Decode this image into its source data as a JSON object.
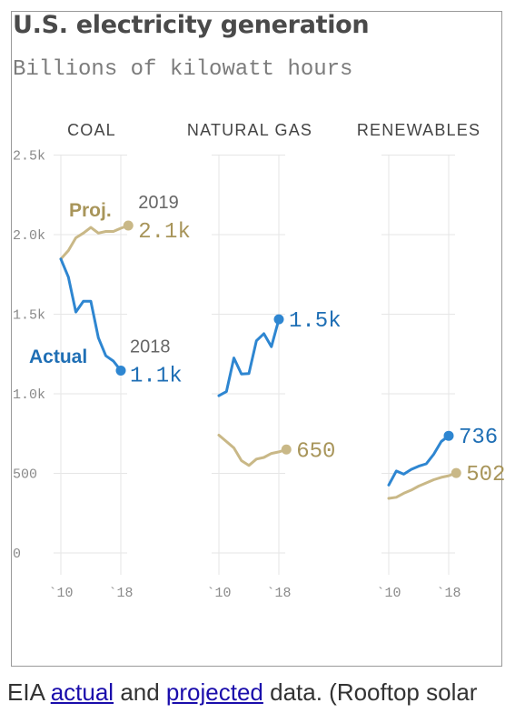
{
  "title": "U.S. electricity generation",
  "subtitle": "Billions of kilowatt hours",
  "colors": {
    "actual": "#2e86d1",
    "projected": "#c9b887",
    "actual_text": "#1f6fb5",
    "projected_text": "#a8955a",
    "grid": "#e6e6e6",
    "axis_text": "#8a8a8a"
  },
  "chart_data": {
    "type": "line",
    "unit": "Billions of kilowatt hours",
    "ylim": [
      0,
      2500
    ],
    "y_ticks": [
      0,
      500,
      1000,
      1500,
      2000,
      2500
    ],
    "y_tick_labels": [
      "0",
      "500",
      "1.0k",
      "1.5k",
      "2.0k",
      "2.5k"
    ],
    "x_tick_labels": [
      "`10",
      "`18"
    ],
    "grid": true,
    "panels": [
      {
        "name": "COAL",
        "series": [
          {
            "kind": "actual",
            "x": [
              2010,
              2011,
              2012,
              2013,
              2014,
              2015,
              2016,
              2017,
              2018
            ],
            "values": [
              1847,
              1733,
              1514,
              1581,
              1581,
              1352,
              1239,
              1206,
              1146
            ]
          },
          {
            "kind": "projected",
            "x": [
              2010,
              2011,
              2012,
              2013,
              2014,
              2015,
              2016,
              2017,
              2018,
              2019
            ],
            "values": [
              1847,
              1900,
              1980,
              2010,
              2045,
              2010,
              2020,
              2020,
              2040,
              2057
            ]
          }
        ],
        "annotations": {
          "actual_year": "2018",
          "actual_value": "1.1k",
          "actual_label": "Actual",
          "projected_year": "2019",
          "projected_value": "2.1k",
          "projected_label": "Proj."
        }
      },
      {
        "name": "NATURAL GAS",
        "series": [
          {
            "kind": "actual",
            "x": [
              2010,
              2011,
              2012,
              2013,
              2014,
              2015,
              2016,
              2017,
              2018
            ],
            "values": [
              988,
              1014,
              1225,
              1124,
              1127,
              1333,
              1378,
              1296,
              1468
            ]
          },
          {
            "kind": "projected",
            "x": [
              2010,
              2011,
              2012,
              2013,
              2014,
              2015,
              2016,
              2017,
              2018,
              2019
            ],
            "values": [
              740,
              700,
              660,
              580,
              550,
              590,
              600,
              625,
              635,
              650
            ]
          }
        ],
        "annotations": {
          "actual_value": "1.5k",
          "projected_value": "650"
        }
      },
      {
        "name": "RENEWABLES",
        "series": [
          {
            "kind": "actual",
            "x": [
              2010,
              2011,
              2012,
              2013,
              2014,
              2015,
              2016,
              2017,
              2018
            ],
            "values": [
              427,
              515,
              495,
              525,
              545,
              560,
              620,
              700,
              736
            ]
          },
          {
            "kind": "projected",
            "x": [
              2010,
              2011,
              2012,
              2013,
              2014,
              2015,
              2016,
              2017,
              2018,
              2019
            ],
            "values": [
              343,
              350,
              375,
              395,
              420,
              440,
              460,
              475,
              485,
              502
            ]
          }
        ],
        "annotations": {
          "actual_value": "736",
          "projected_value": "502"
        }
      }
    ]
  },
  "caption": {
    "prefix": "EIA ",
    "link_actual": "actual",
    "middle": " and ",
    "link_projected": "projected",
    "suffix": " data. (Rooftop solar"
  }
}
